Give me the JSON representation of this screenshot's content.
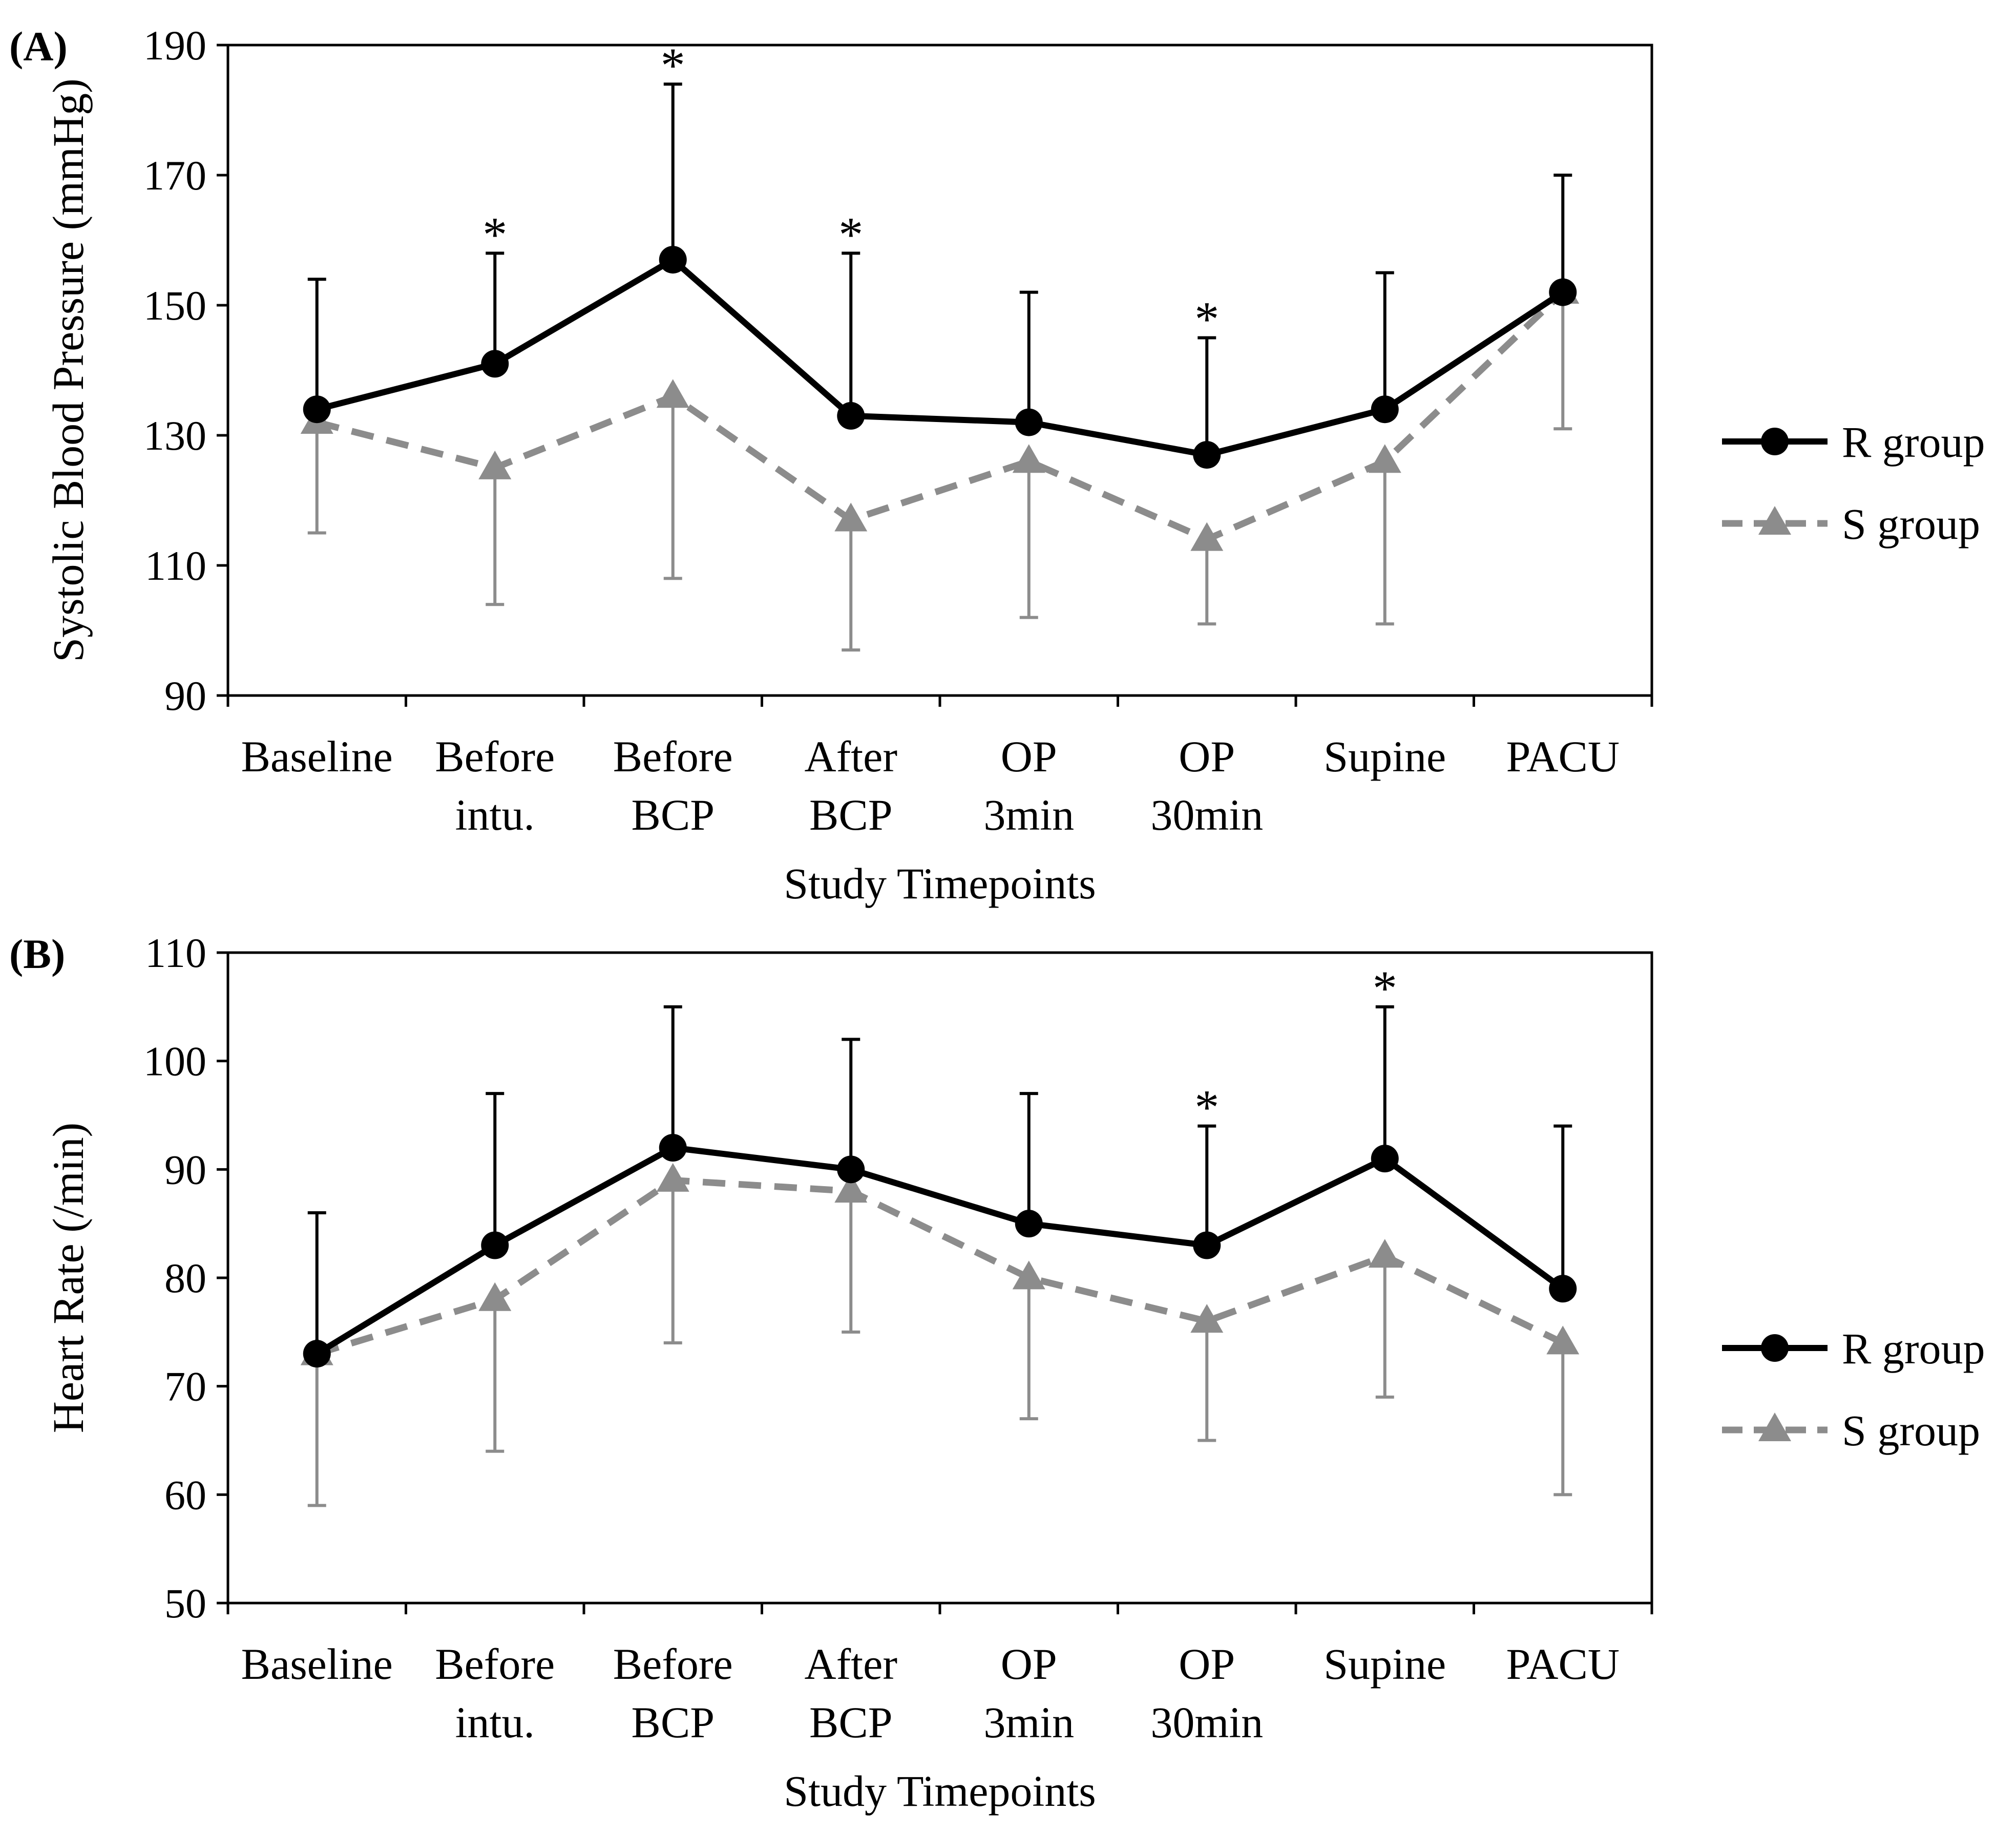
{
  "chart_data": [
    {
      "panel_label": "(A)",
      "type": "line",
      "ylabel": "Systolic Blood Pressure (mmHg)",
      "xlabel": "Study Timepoints",
      "ylim": [
        90,
        190
      ],
      "yticks": [
        "90",
        "110",
        "130",
        "150",
        "170",
        "190"
      ],
      "categories": [
        [
          "Baseline"
        ],
        [
          "Before",
          "intu."
        ],
        [
          "Before",
          "BCP"
        ],
        [
          "After",
          "BCP"
        ],
        [
          "OP",
          "3min"
        ],
        [
          "OP",
          "30min"
        ],
        [
          "Supine"
        ],
        [
          "PACU"
        ]
      ],
      "series": [
        {
          "name": "R group",
          "color": "#000000",
          "marker": "circle",
          "line_style": "solid",
          "error_direction": "up",
          "values": [
            134,
            141,
            157,
            133,
            132,
            127,
            134,
            152
          ],
          "errors": [
            20,
            17,
            27,
            25,
            20,
            18,
            21,
            18
          ]
        },
        {
          "name": "S group",
          "color": "#8c8c8c",
          "marker": "triangle",
          "line_style": "dashed",
          "error_direction": "down",
          "values": [
            132,
            125,
            136,
            117,
            126,
            114,
            126,
            152
          ],
          "errors": [
            17,
            21,
            28,
            20,
            24,
            13,
            25,
            21
          ]
        }
      ],
      "significance": [
        "",
        "*",
        "*",
        "*",
        "",
        "*",
        "",
        ""
      ],
      "grid": false,
      "legend_position": "right"
    },
    {
      "panel_label": "(B)",
      "type": "line",
      "ylabel": "Heart Rate (/min)",
      "xlabel": "Study Timepoints",
      "ylim": [
        50,
        110
      ],
      "yticks": [
        "50",
        "60",
        "70",
        "80",
        "90",
        "100",
        "110"
      ],
      "categories": [
        [
          "Baseline"
        ],
        [
          "Before",
          "intu."
        ],
        [
          "Before",
          "BCP"
        ],
        [
          "After",
          "BCP"
        ],
        [
          "OP",
          "3min"
        ],
        [
          "OP",
          "30min"
        ],
        [
          "Supine"
        ],
        [
          "PACU"
        ]
      ],
      "series": [
        {
          "name": "R group",
          "color": "#000000",
          "marker": "circle",
          "line_style": "solid",
          "error_direction": "up",
          "values": [
            73,
            83,
            92,
            90,
            85,
            83,
            91,
            79
          ],
          "errors": [
            13,
            14,
            13,
            12,
            12,
            11,
            14,
            15
          ]
        },
        {
          "name": "S group",
          "color": "#8c8c8c",
          "marker": "triangle",
          "line_style": "dashed",
          "error_direction": "down",
          "values": [
            73,
            78,
            89,
            88,
            80,
            76,
            82,
            74
          ],
          "errors": [
            14,
            14,
            15,
            13,
            13,
            11,
            13,
            14
          ]
        }
      ],
      "significance": [
        "",
        "",
        "",
        "",
        "",
        "*",
        "*",
        ""
      ],
      "grid": false,
      "legend_position": "right"
    }
  ]
}
